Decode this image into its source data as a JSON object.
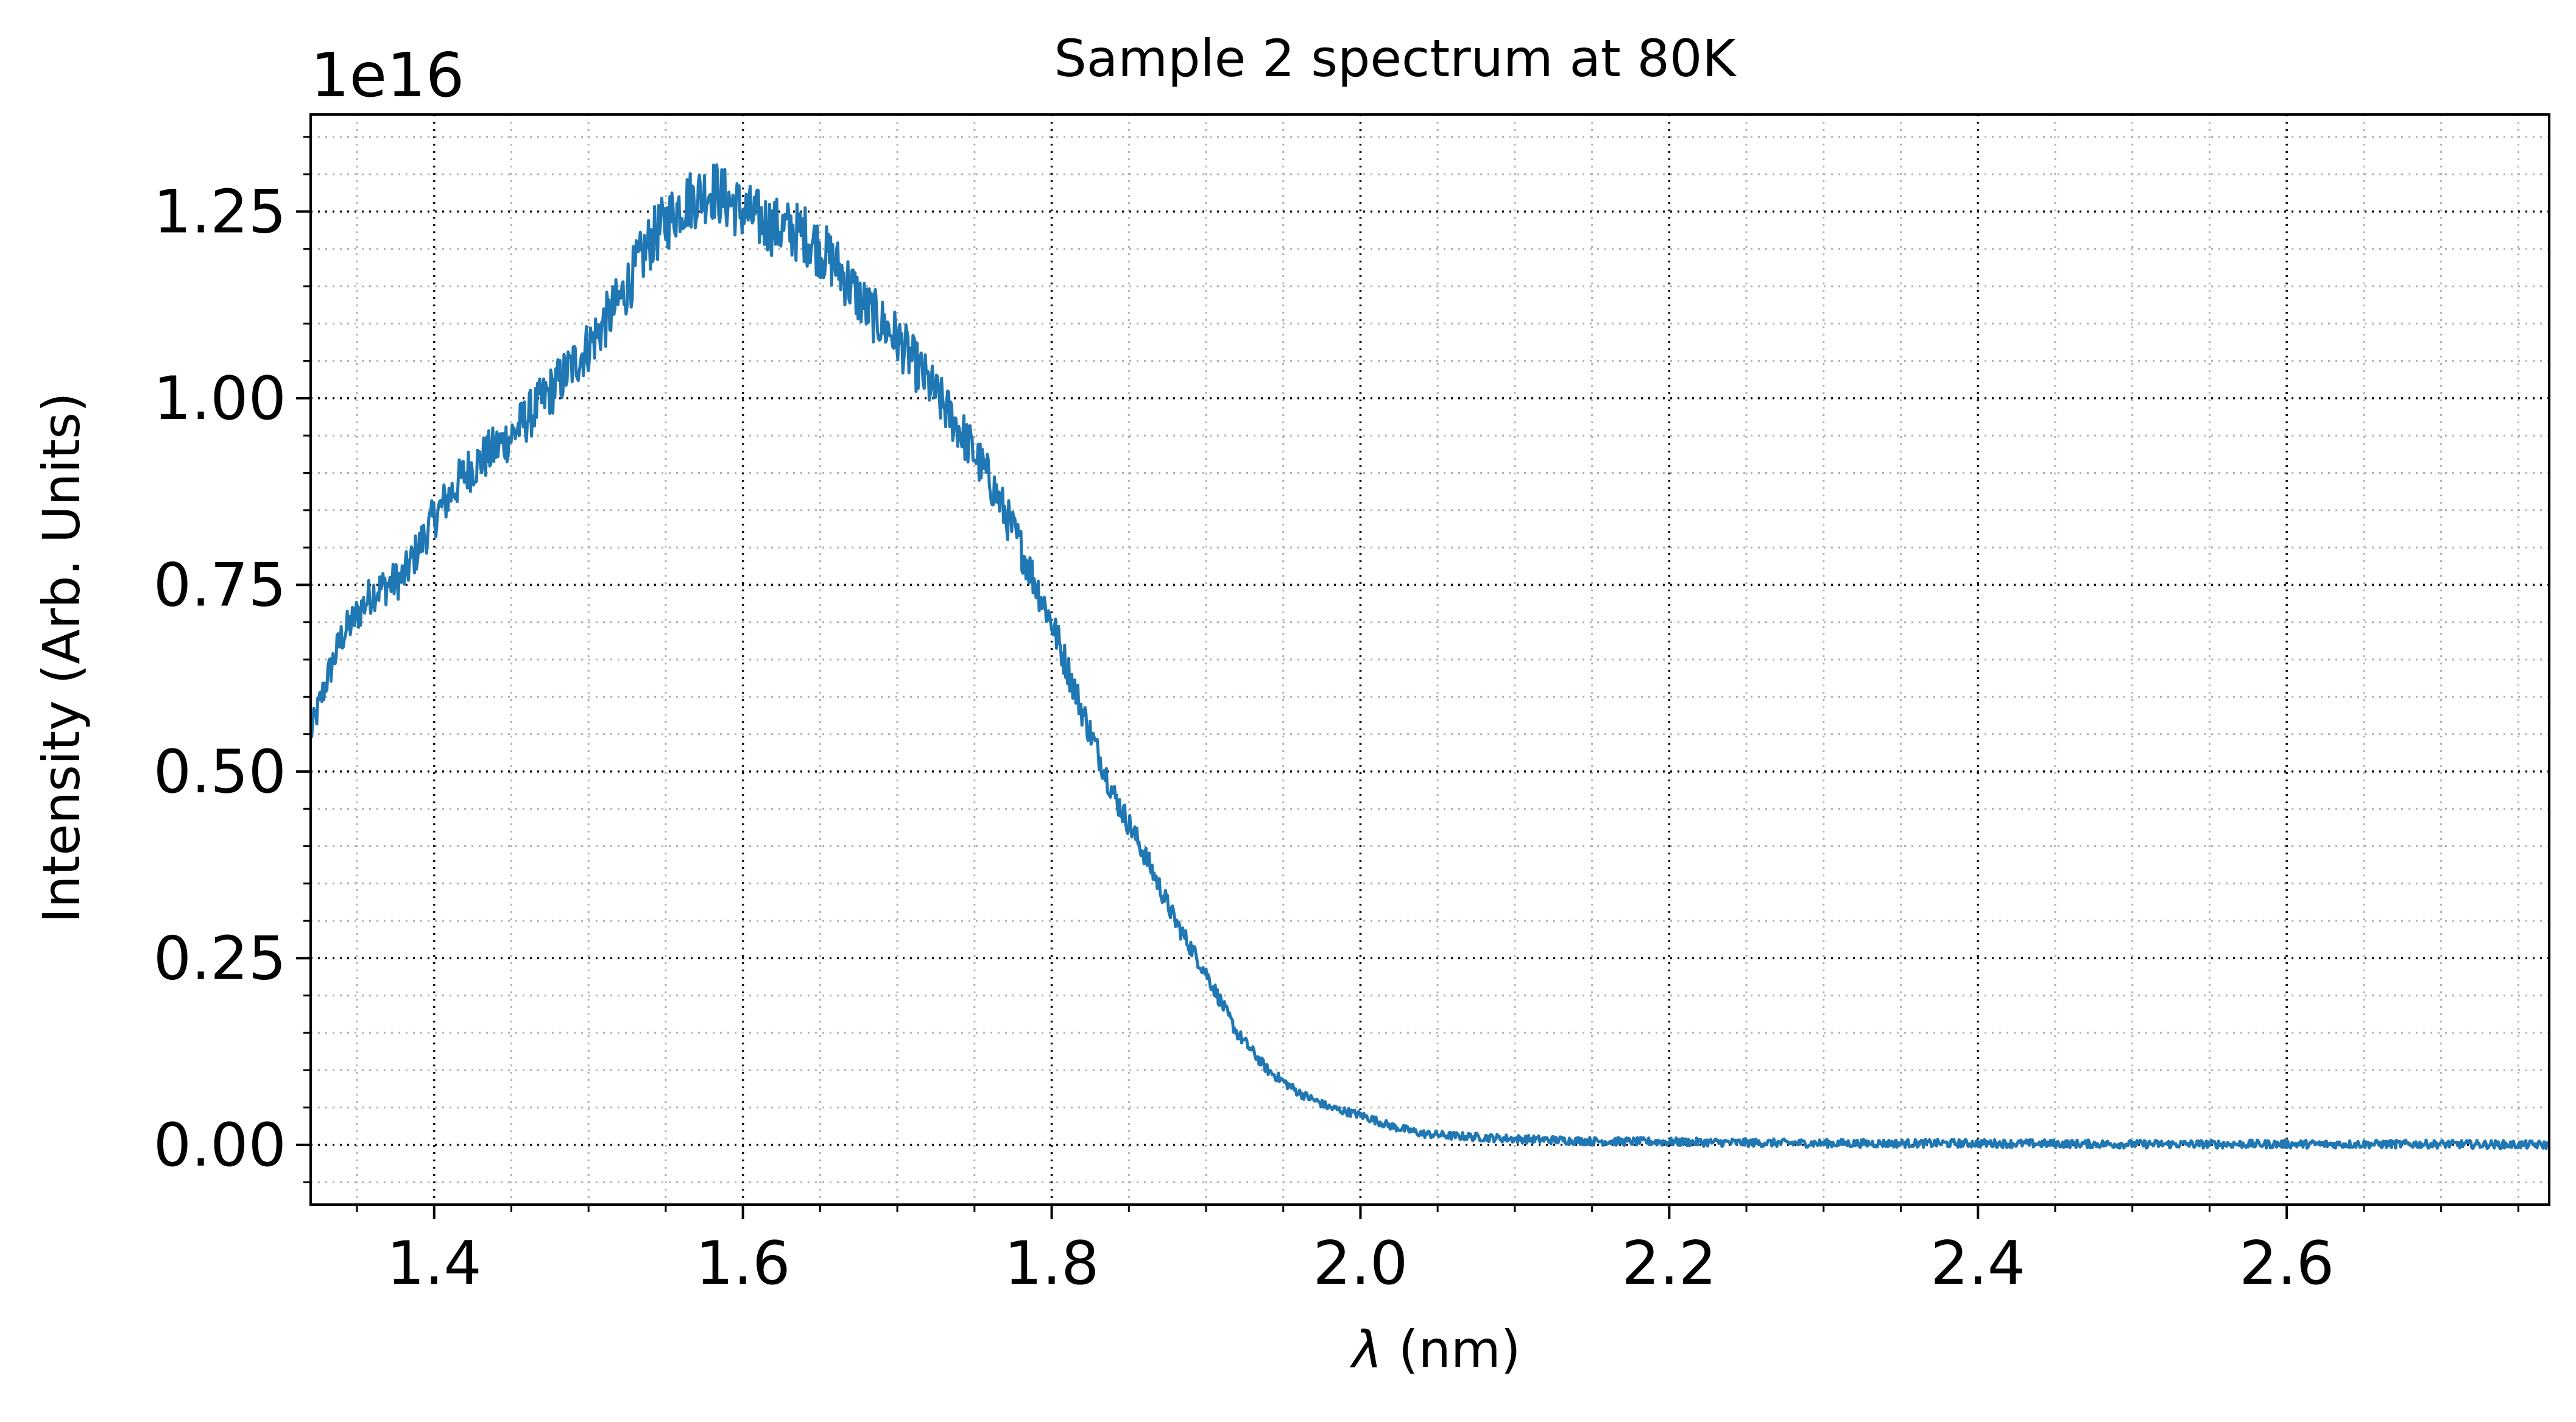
{
  "chart_data": {
    "type": "line",
    "title": "Sample 2 spectrum at 80K",
    "xlabel_symbol": "λ",
    "xlabel_unit": " (nm)",
    "ylabel": "Intensity (Arb. Units)",
    "y_offset_label": "1e16",
    "y_scale_exponent": 16,
    "xlim": [
      1.32,
      2.77
    ],
    "ylim": [
      -0.08,
      1.38
    ],
    "x_major_ticks": [
      1.4,
      1.6,
      1.8,
      2.0,
      2.2,
      2.4,
      2.6
    ],
    "x_tick_labels": [
      "1.4",
      "1.6",
      "1.8",
      "2.0",
      "2.2",
      "2.4",
      "2.6"
    ],
    "x_minor_step": 0.05,
    "y_major_ticks": [
      0.0,
      0.25,
      0.5,
      0.75,
      1.0,
      1.25
    ],
    "y_tick_labels": [
      "0.00",
      "0.25",
      "0.50",
      "0.75",
      "1.00",
      "1.25"
    ],
    "y_minor_step": 0.05,
    "grid": "major and minor, dotted",
    "legend": "none",
    "series": [
      {
        "color": "#1f77b4",
        "x": [
          1.32,
          1.33,
          1.34,
          1.36,
          1.38,
          1.4,
          1.42,
          1.45,
          1.48,
          1.5,
          1.52,
          1.54,
          1.56,
          1.58,
          1.6,
          1.62,
          1.64,
          1.66,
          1.68,
          1.7,
          1.72,
          1.74,
          1.76,
          1.78,
          1.8,
          1.82,
          1.84,
          1.86,
          1.88,
          1.9,
          1.92,
          1.94,
          1.96,
          1.98,
          2.0,
          2.02,
          2.04,
          2.06,
          2.08,
          2.1,
          2.15,
          2.2,
          2.25,
          2.3,
          2.4,
          2.5,
          2.6,
          2.7,
          2.77
        ],
        "y": [
          0.55,
          0.62,
          0.68,
          0.74,
          0.76,
          0.84,
          0.9,
          0.95,
          1.02,
          1.07,
          1.13,
          1.21,
          1.26,
          1.28,
          1.25,
          1.23,
          1.22,
          1.18,
          1.12,
          1.08,
          1.02,
          0.96,
          0.89,
          0.8,
          0.7,
          0.58,
          0.47,
          0.39,
          0.3,
          0.23,
          0.15,
          0.1,
          0.07,
          0.05,
          0.04,
          0.025,
          0.015,
          0.012,
          0.01,
          0.008,
          0.005,
          0.004,
          0.003,
          0.002,
          0.002,
          0.001,
          0.001,
          0.001,
          0.0
        ],
        "noise_amplitude_fraction": 0.03
      }
    ]
  }
}
